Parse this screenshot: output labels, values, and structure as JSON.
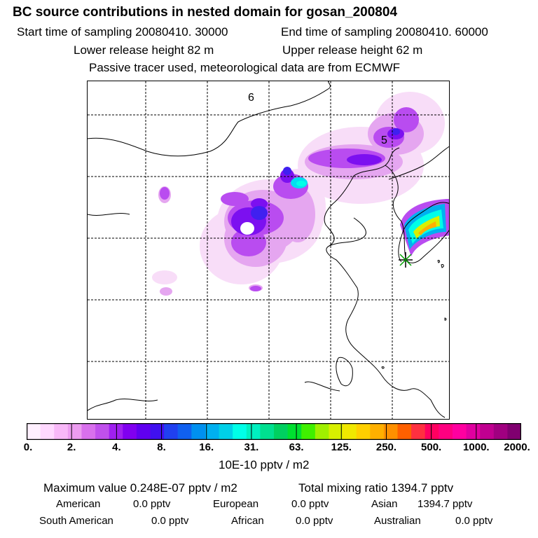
{
  "title": "BC  source contributions in nested domain for gosan_200804",
  "header": {
    "start_time": "Start time of sampling 20080410. 30000",
    "end_time": "End time of sampling 20080410. 60000",
    "lower_height": "Lower release height   82 m",
    "upper_height": "Upper release height   62 m",
    "tracer_note": "Passive tracer used, meteorological data are from ECMWF"
  },
  "map": {
    "contour_labels": [
      "6",
      "5"
    ],
    "source_marker": "receptor-star-icon",
    "gridline_style": "dashed"
  },
  "colorbar": {
    "colors": [
      "#fff0ff",
      "#ffd8ff",
      "#f8b8f8",
      "#ec9cf0",
      "#d870ec",
      "#c050ec",
      "#a020f0",
      "#8000f0",
      "#6000f0",
      "#4010f0",
      "#2040f0",
      "#1060f0",
      "#0090f0",
      "#00b0f0",
      "#00d0e8",
      "#00ffe8",
      "#00f0c0",
      "#00e090",
      "#00d060",
      "#00e030",
      "#40f000",
      "#a0f000",
      "#d8f000",
      "#f0e800",
      "#ffd000",
      "#ffb000",
      "#ff9000",
      "#ff6000",
      "#ff3040",
      "#ff0060",
      "#ff0080",
      "#ff00a0",
      "#e000a0",
      "#c00090",
      "#a00080",
      "#800070"
    ],
    "tick_labels": [
      "0.",
      "2.",
      "4.",
      "8.",
      "16.",
      "31.",
      "63.",
      "125.",
      "250.",
      "500.",
      "1000.",
      "2000."
    ],
    "units": "10E-10 pptv / m2"
  },
  "footer": {
    "max_value": "Maximum value  0.248E-07 pptv / m2",
    "total_mixing": "Total mixing ratio     1394.7 pptv",
    "american_label": "American",
    "american_value": "0.0 pptv",
    "european_label": "European",
    "european_value": "0.0 pptv",
    "asian_label": "Asian",
    "asian_value": "1394.7 pptv",
    "south_american_label": "South American",
    "south_american_value": "0.0 pptv",
    "african_label": "African",
    "african_value": "0.0 pptv",
    "australian_label": "Australian",
    "australian_value": "0.0 pptv"
  }
}
